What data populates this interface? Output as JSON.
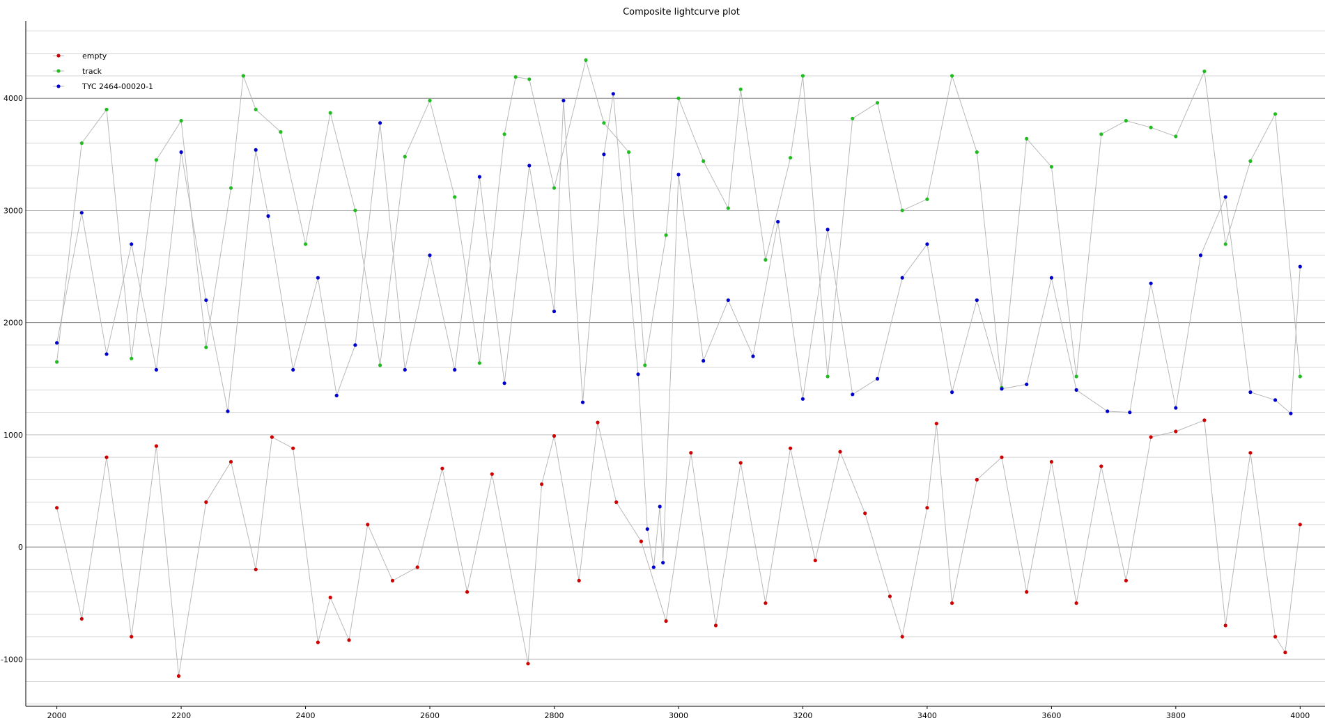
{
  "chart_data": {
    "type": "scatter",
    "title": "Composite lightcurve plot",
    "xlabel": "",
    "ylabel": "",
    "xlim": [
      1950,
      4040
    ],
    "ylim": [
      -1420,
      4690
    ],
    "x_ticks": [
      2000,
      2200,
      2400,
      2600,
      2800,
      3000,
      3200,
      3400,
      3600,
      3800,
      4000
    ],
    "x_tick_labels": [
      "2000",
      "2200",
      "2400",
      "2600",
      "2800",
      "3000",
      "3200",
      "3400",
      "3600",
      "3800",
      "4000"
    ],
    "y_ticks": [
      -1000,
      0,
      1000,
      2000,
      3000,
      4000
    ],
    "y_tick_labels": [
      "-1000",
      "0",
      "1000",
      "2000",
      "3000",
      "4000"
    ],
    "y_major_lines": [
      0,
      2000,
      4000
    ],
    "grid": true,
    "legend_position": "top-left",
    "connect_points": true,
    "series": [
      {
        "name": "empty",
        "color": "#cc0000",
        "x": [
          2000,
          2040,
          2080,
          2120,
          2160,
          2196,
          2240,
          2280,
          2320,
          2346,
          2380,
          2420,
          2440,
          2470,
          2500,
          2540,
          2580,
          2620,
          2660,
          2700,
          2758,
          2780,
          2800,
          2840,
          2870,
          2900,
          2940,
          2980,
          3020,
          3060,
          3100,
          3140,
          3180,
          3220,
          3260,
          3300,
          3340,
          3360,
          3400,
          3415,
          3440,
          3480,
          3520,
          3560,
          3600,
          3640,
          3680,
          3720,
          3760,
          3800,
          3846,
          3880,
          3920,
          3960,
          3976,
          4000
        ],
        "y": [
          350,
          -640,
          800,
          -800,
          900,
          -1150,
          400,
          760,
          -200,
          980,
          880,
          -850,
          -450,
          -830,
          200,
          -300,
          -180,
          700,
          -400,
          650,
          -1040,
          560,
          990,
          -300,
          1110,
          400,
          50,
          -660,
          840,
          -700,
          750,
          -500,
          880,
          -120,
          850,
          300,
          -440,
          -800,
          350,
          1100,
          -500,
          600,
          800,
          -400,
          760,
          -500,
          720,
          -300,
          980,
          1030,
          1130,
          -700,
          840,
          -800,
          -940,
          200
        ],
        "tick_marks": [
          {
            "x": 2000,
            "label": "2000"
          }
        ]
      },
      {
        "name": "track",
        "color": "#22bb22",
        "x": [
          2000,
          2040,
          2080,
          2120,
          2160,
          2200,
          2240,
          2280,
          2300,
          2320,
          2360,
          2400,
          2440,
          2480,
          2520,
          2560,
          2600,
          2640,
          2680,
          2720,
          2738,
          2760,
          2800,
          2851,
          2880,
          2920,
          2946,
          2980,
          3000,
          3040,
          3080,
          3100,
          3140,
          3180,
          3200,
          3240,
          3280,
          3320,
          3360,
          3400,
          3440,
          3480,
          3520,
          3560,
          3600,
          3640,
          3680,
          3720,
          3760,
          3800,
          3846,
          3880,
          3920,
          3960,
          4000
        ],
        "y": [
          1650,
          3600,
          3900,
          1680,
          3450,
          3800,
          1780,
          3200,
          4200,
          3900,
          3700,
          2700,
          3870,
          3000,
          1620,
          3480,
          3980,
          3120,
          1640,
          3680,
          4190,
          4170,
          3200,
          4340,
          3780,
          3520,
          1620,
          2780,
          4000,
          3440,
          3020,
          4080,
          2560,
          3470,
          4200,
          1520,
          3820,
          3960,
          3000,
          3100,
          4200,
          3520,
          1420,
          3640,
          3390,
          1520,
          3680,
          3800,
          3740,
          3660,
          4240,
          2700,
          3440,
          3860,
          1520
        ]
      },
      {
        "name": "TYC 2464-00020-1",
        "color": "#0000cc",
        "x": [
          2000,
          2040,
          2080,
          2120,
          2160,
          2200,
          2240,
          2275,
          2320,
          2340,
          2380,
          2420,
          2450,
          2480,
          2520,
          2560,
          2600,
          2640,
          2680,
          2720,
          2760,
          2800,
          2815,
          2846,
          2880,
          2895,
          2935,
          2950,
          2960,
          2970,
          2975,
          3000,
          3040,
          3080,
          3120,
          3160,
          3200,
          3240,
          3280,
          3320,
          3360,
          3400,
          3440,
          3480,
          3520,
          3560,
          3600,
          3640,
          3690,
          3726,
          3760,
          3800,
          3840,
          3880,
          3920,
          3960,
          3985,
          4000
        ],
        "y": [
          1820,
          2980,
          1720,
          2700,
          1580,
          3520,
          2200,
          1210,
          3540,
          2950,
          1580,
          2400,
          1350,
          1800,
          3780,
          1580,
          2600,
          1580,
          3300,
          1460,
          3400,
          2100,
          3980,
          1290,
          3500,
          4040,
          1540,
          160,
          -180,
          360,
          -140,
          3320,
          1660,
          2200,
          1700,
          2900,
          1320,
          2830,
          1360,
          1500,
          2400,
          2700,
          1380,
          2200,
          1410,
          1450,
          2400,
          1400,
          1210,
          1200,
          2350,
          1240,
          2600,
          3120,
          1380,
          1310,
          1190,
          2500
        ]
      }
    ]
  }
}
